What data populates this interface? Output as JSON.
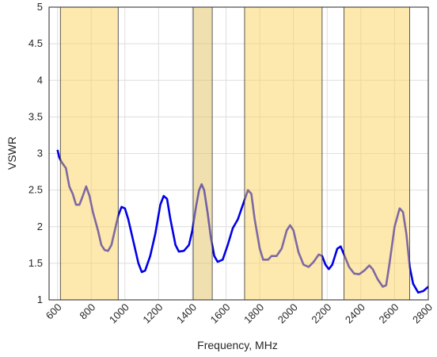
{
  "chart_data": {
    "type": "line",
    "xlabel": "Frequency, MHz",
    "ylabel": "VSWR",
    "xlim": [
      550,
      2800
    ],
    "ylim": [
      1,
      5
    ],
    "xticks": [
      600,
      800,
      1000,
      1200,
      1400,
      1600,
      1800,
      2000,
      2200,
      2400,
      2600,
      2800
    ],
    "yticks": [
      1,
      1.5,
      2,
      2.5,
      3,
      3.5,
      4,
      4.5,
      5
    ],
    "grid": true,
    "bands": [
      {
        "x": [
          617,
          960
        ],
        "color": "#fbd25e"
      },
      {
        "x": [
          1405,
          1518
        ],
        "color": "#e3c160"
      },
      {
        "x": [
          1710,
          2170
        ],
        "color": "#fbd25e"
      },
      {
        "x": [
          2300,
          2690
        ],
        "color": "#fbd25e"
      }
    ],
    "series": [
      {
        "name": "VSWR",
        "color": "#0000e6",
        "x": [
          600,
          610,
          625,
          650,
          670,
          690,
          710,
          730,
          750,
          770,
          790,
          810,
          840,
          860,
          880,
          900,
          920,
          940,
          960,
          980,
          1000,
          1020,
          1050,
          1080,
          1100,
          1120,
          1150,
          1180,
          1210,
          1230,
          1250,
          1270,
          1300,
          1320,
          1350,
          1380,
          1400,
          1420,
          1440,
          1455,
          1470,
          1490,
          1510,
          1530,
          1550,
          1580,
          1610,
          1640,
          1670,
          1700,
          1730,
          1750,
          1770,
          1800,
          1820,
          1850,
          1870,
          1900,
          1930,
          1960,
          1980,
          2000,
          2030,
          2060,
          2090,
          2120,
          2150,
          2170,
          2190,
          2210,
          2230,
          2260,
          2280,
          2300,
          2330,
          2360,
          2390,
          2420,
          2450,
          2470,
          2500,
          2530,
          2550,
          2570,
          2600,
          2630,
          2650,
          2670,
          2690,
          2710,
          2740,
          2770,
          2800
        ],
        "values": [
          3.05,
          2.95,
          2.88,
          2.8,
          2.55,
          2.45,
          2.3,
          2.3,
          2.42,
          2.55,
          2.42,
          2.2,
          1.95,
          1.75,
          1.68,
          1.67,
          1.75,
          1.95,
          2.15,
          2.27,
          2.25,
          2.1,
          1.8,
          1.5,
          1.38,
          1.4,
          1.6,
          1.9,
          2.3,
          2.42,
          2.38,
          2.1,
          1.75,
          1.66,
          1.67,
          1.75,
          1.95,
          2.25,
          2.5,
          2.58,
          2.5,
          2.2,
          1.85,
          1.6,
          1.52,
          1.55,
          1.75,
          1.98,
          2.1,
          2.3,
          2.5,
          2.45,
          2.1,
          1.7,
          1.55,
          1.55,
          1.6,
          1.6,
          1.7,
          1.95,
          2.02,
          1.95,
          1.65,
          1.48,
          1.45,
          1.52,
          1.62,
          1.6,
          1.48,
          1.42,
          1.48,
          1.7,
          1.73,
          1.62,
          1.45,
          1.36,
          1.35,
          1.4,
          1.47,
          1.42,
          1.28,
          1.18,
          1.2,
          1.5,
          2.0,
          2.25,
          2.2,
          1.9,
          1.45,
          1.22,
          1.1,
          1.12,
          1.18
        ]
      }
    ]
  }
}
